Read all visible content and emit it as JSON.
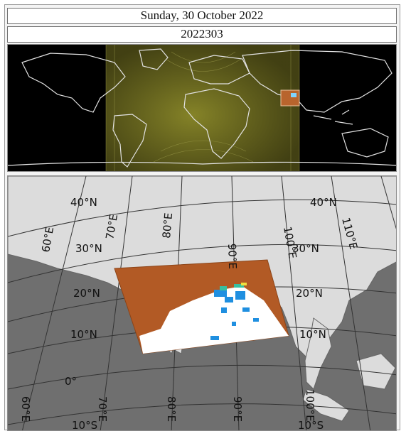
{
  "header": {
    "date": "Sunday, 30 October 2022",
    "code": "2022303"
  },
  "world_map": {
    "icon": "world-map-night-overlay",
    "colors": {
      "ocean": "#000000",
      "coast": "#d9d9d9",
      "daylight": "#6b6a1d",
      "swath": "#b8642d"
    }
  },
  "region_map": {
    "icon": "regional-projection-map",
    "lat_labels": [
      "40°N",
      "30°N",
      "20°N",
      "10°N",
      "0°",
      "10°S"
    ],
    "lat_labels_right": [
      "40°N",
      "30°N",
      "20°N",
      "10°N",
      "10°S"
    ],
    "lon_labels": [
      "60°E",
      "70°E",
      "80°E",
      "90°E",
      "100°E",
      "110°E"
    ],
    "lon_labels_bottom": [
      "60°E",
      "70°E",
      "80°E",
      "90°E",
      "100°E"
    ],
    "colors": {
      "sea": "#6f6f6f",
      "land": "#dcdcdc",
      "cloud": "#b25a25",
      "clear": "#ffffff",
      "aerosol": "#1f8fe0"
    }
  }
}
